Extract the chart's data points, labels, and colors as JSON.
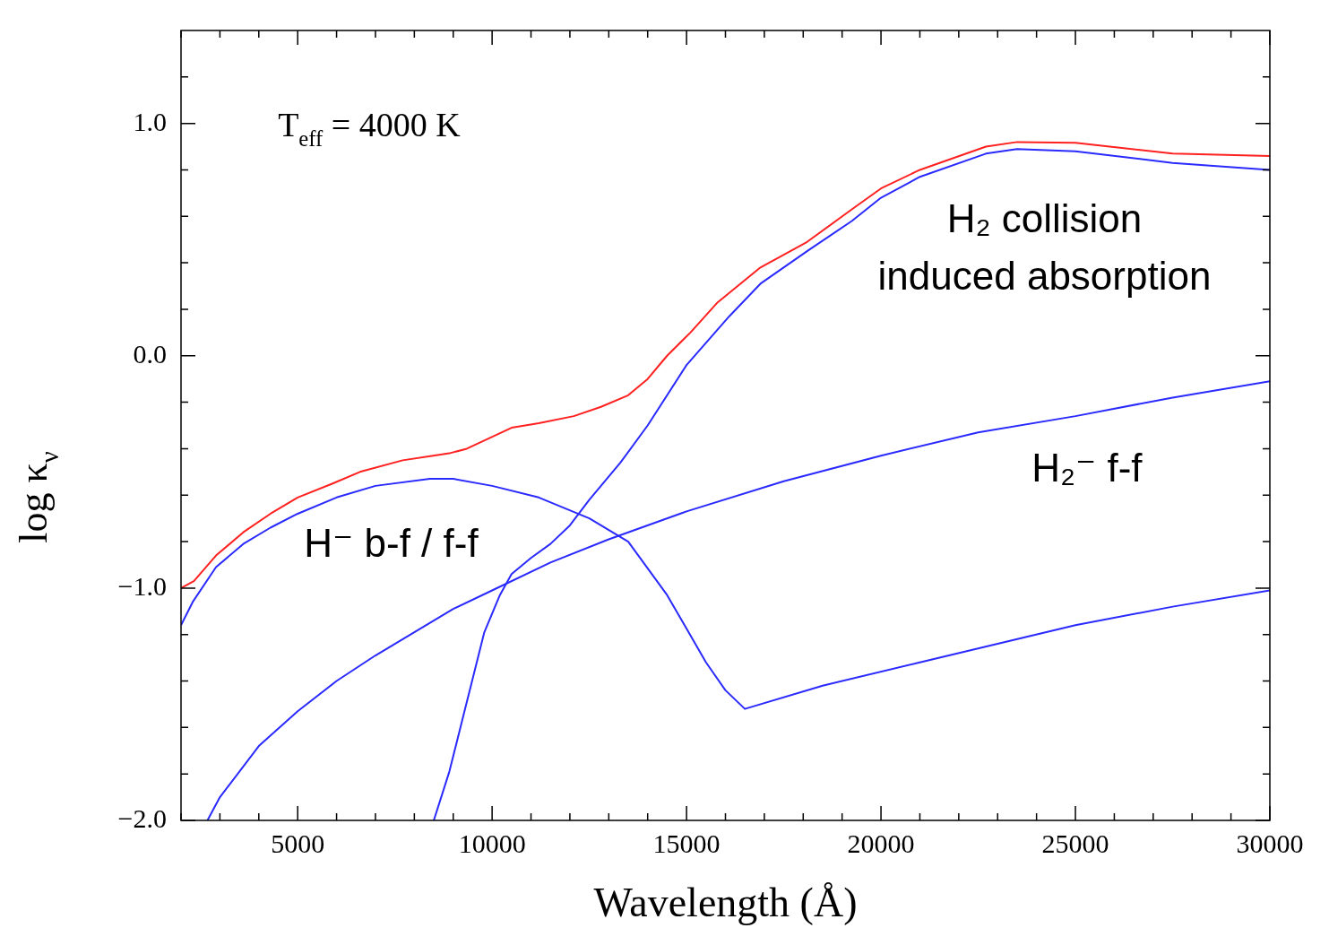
{
  "chart_data": {
    "type": "line",
    "xlabel": "Wavelength (Å)",
    "ylabel": "log κ$_{ν}$",
    "marker": "none",
    "legend": false,
    "xlim": [
      2000,
      30000
    ],
    "ylim": [
      -2.0,
      1.4
    ],
    "xticks": [
      {
        "value": 2000,
        "label": null
      },
      {
        "value": 3000,
        "label": null
      },
      {
        "value": 4000,
        "label": null
      },
      5000,
      {
        "value": 6000,
        "label": null
      },
      {
        "value": 7000,
        "label": null
      },
      {
        "value": 8000,
        "label": null
      },
      {
        "value": 9000,
        "label": null
      },
      10000,
      {
        "value": 11000,
        "label": null
      },
      {
        "value": 12000,
        "label": null
      },
      {
        "value": 13000,
        "label": null
      },
      {
        "value": 14000,
        "label": null
      },
      15000,
      {
        "value": 16000,
        "label": null
      },
      {
        "value": 17000,
        "label": null
      },
      {
        "value": 18000,
        "label": null
      },
      {
        "value": 19000,
        "label": null
      },
      20000,
      {
        "value": 21000,
        "label": null
      },
      {
        "value": 22000,
        "label": null
      },
      {
        "value": 23000,
        "label": null
      },
      {
        "value": 24000,
        "label": null
      },
      25000,
      {
        "value": 26000,
        "label": null
      },
      {
        "value": 27000,
        "label": null
      },
      {
        "value": 28000,
        "label": null
      },
      {
        "value": 29000,
        "label": null
      },
      30000
    ],
    "yticks": [
      {
        "value": -2.0,
        "label": "−2.0"
      },
      {
        "value": -1.8,
        "label": null
      },
      {
        "value": -1.6,
        "label": null
      },
      {
        "value": -1.4,
        "label": null
      },
      {
        "value": -1.2,
        "label": null
      },
      {
        "value": -1.0,
        "label": "−1.0"
      },
      {
        "value": -0.8,
        "label": null
      },
      {
        "value": -0.6,
        "label": null
      },
      {
        "value": -0.4,
        "label": null
      },
      {
        "value": -0.2,
        "label": null
      },
      {
        "value": 0.0,
        "label": "0.0"
      },
      {
        "value": 0.2,
        "label": null
      },
      {
        "value": 0.4,
        "label": null
      },
      {
        "value": 0.6,
        "label": null
      },
      {
        "value": 0.8,
        "label": null
      },
      {
        "value": 1.0,
        "label": "1.0"
      },
      {
        "value": 1.2,
        "label": null
      }
    ],
    "series": [
      {
        "color": "#ff2020",
        "x": [
          2000,
          2330,
          2900,
          3600,
          4300,
          5000,
          5900,
          6600,
          7700,
          8900,
          9350,
          10500,
          11200,
          12100,
          12800,
          13500,
          14000,
          14500,
          15100,
          15800,
          16900,
          18100,
          19250,
          20000,
          21000,
          22700,
          23500,
          25000,
          27500,
          30000
        ],
        "values": [
          -1.0,
          -0.97,
          -0.86,
          -0.76,
          -0.68,
          -0.61,
          -0.55,
          -0.5,
          -0.45,
          -0.42,
          -0.4,
          -0.31,
          -0.29,
          -0.26,
          -0.22,
          -0.17,
          -0.1,
          0.0,
          0.1,
          0.23,
          0.38,
          0.49,
          0.63,
          0.72,
          0.8,
          0.9,
          0.92,
          0.917,
          0.87,
          0.86
        ]
      },
      {
        "color": "#2a2aff",
        "x": [
          2000,
          2300,
          2900,
          3600,
          4300,
          5000,
          6000,
          7000,
          8400,
          9000,
          10000,
          11200,
          12500,
          13500,
          14500,
          15500,
          16000,
          16500,
          18500,
          21000,
          25000,
          27500,
          30000
        ],
        "values": [
          -1.16,
          -1.06,
          -0.91,
          -0.81,
          -0.74,
          -0.68,
          -0.61,
          -0.56,
          -0.53,
          -0.53,
          -0.56,
          -0.61,
          -0.7,
          -0.8,
          -1.03,
          -1.32,
          -1.44,
          -1.52,
          -1.42,
          -1.32,
          -1.16,
          -1.08,
          -1.01
        ]
      },
      {
        "color": "#2a2aff",
        "x": [
          2680,
          3000,
          4000,
          5000,
          6000,
          7000,
          8000,
          9000,
          10000,
          11500,
          13000,
          15000,
          17500,
          20000,
          22500,
          25000,
          27500,
          30000
        ],
        "values": [
          -2.0,
          -1.9,
          -1.68,
          -1.53,
          -1.4,
          -1.29,
          -1.19,
          -1.09,
          -1.01,
          -0.89,
          -0.79,
          -0.67,
          -0.54,
          -0.43,
          -0.33,
          -0.26,
          -0.18,
          -0.11
        ]
      },
      {
        "color": "#2a2aff",
        "x": [
          8500,
          8900,
          9350,
          9800,
          10200,
          10500,
          11000,
          11500,
          12000,
          12500,
          13300,
          14000,
          15000,
          16100,
          16900,
          18100,
          19250,
          20000,
          21000,
          22700,
          23500,
          25000,
          27500,
          30000
        ],
        "values": [
          -2.0,
          -1.79,
          -1.49,
          -1.19,
          -1.03,
          -0.94,
          -0.87,
          -0.81,
          -0.73,
          -0.62,
          -0.46,
          -0.3,
          -0.04,
          0.17,
          0.31,
          0.45,
          0.58,
          0.68,
          0.77,
          0.87,
          0.89,
          0.88,
          0.83,
          0.8
        ]
      }
    ],
    "annotations": [
      "T$_{eff}$ = 4000 K",
      "H₂ collision\ninduced absorption",
      "H₂⁻ f-f",
      "H⁻ b-f / f-f"
    ]
  }
}
